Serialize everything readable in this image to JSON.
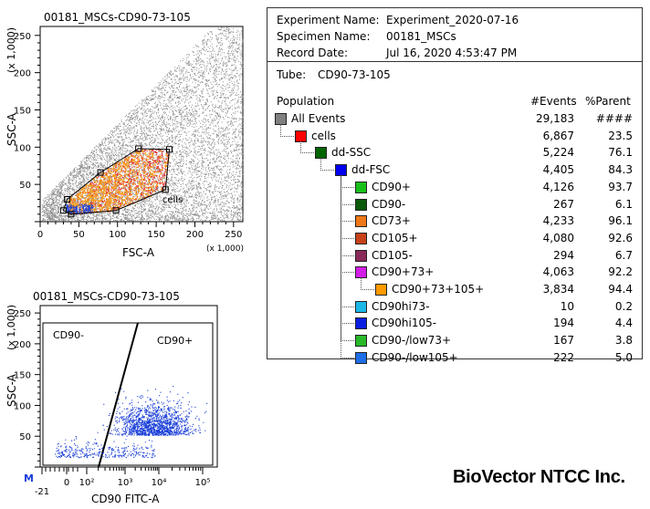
{
  "chart_data": [
    {
      "type": "scatter",
      "title": "00181_MSCs-CD90-73-105",
      "xlabel": "FSC-A",
      "ylabel": "SSC-A",
      "x_scale": "(x 1,000)",
      "y_scale": "(x 1,000)",
      "xlim": [
        0,
        262
      ],
      "ylim": [
        0,
        262
      ],
      "x_ticks": [
        "0",
        "50",
        "100",
        "150",
        "200",
        "250"
      ],
      "y_ticks": [
        "50",
        "100",
        "150",
        "200",
        "250"
      ],
      "gate_label": "cells",
      "gate_vertices": [
        [
          30,
          15
        ],
        [
          40,
          10
        ],
        [
          98,
          15
        ],
        [
          162,
          43
        ],
        [
          167,
          97
        ],
        [
          127,
          98
        ],
        [
          78,
          66
        ],
        [
          35,
          30
        ]
      ],
      "colors": {
        "all_events": "#8c8c8c",
        "cells": "#ee1c1c",
        "cd73": "#f07d12",
        "cd90_73_105": "#f6a21c",
        "cd90_low": "#1a3fd8"
      }
    },
    {
      "type": "scatter",
      "title": "00181_MSCs-CD90-73-105",
      "xlabel": "CD90 FITC-A",
      "ylabel": "SSC-A",
      "y_scale": "(x 1,000)",
      "x_scale_type": "log",
      "x_ticks": [
        "-21",
        "0",
        "10²",
        "10³",
        "10⁴",
        "10⁵"
      ],
      "y_ticks": [
        "50",
        "100",
        "150",
        "200",
        "250"
      ],
      "region_labels": [
        "CD90-",
        "CD90+"
      ],
      "marker_label": "M",
      "colors": {
        "events": "#1a3fd8"
      }
    }
  ],
  "experiment": {
    "fields": [
      {
        "label": "Experiment Name:",
        "value": "Experiment_2020-07-16"
      },
      {
        "label": "Specimen Name:",
        "value": "00181_MSCs"
      },
      {
        "label": "Record Date:",
        "value": "Jul 16, 2020 4:53:47 PM"
      }
    ],
    "tube_label": "Tube:",
    "tube_value": "CD90-73-105"
  },
  "hierarchy": {
    "headers": {
      "population": "Population",
      "events": "#Events",
      "parent": "%Parent"
    },
    "rows": [
      {
        "name": "All Events",
        "events": "29,183",
        "parent": "####",
        "color": "#808080",
        "level": 0
      },
      {
        "name": "cells",
        "events": "6,867",
        "parent": "23.5",
        "color": "#ff0000",
        "level": 1
      },
      {
        "name": "dd-SSC",
        "events": "5,224",
        "parent": "76.1",
        "color": "#006400",
        "level": 2
      },
      {
        "name": "dd-FSC",
        "events": "4,405",
        "parent": "84.3",
        "color": "#0000ee",
        "level": 3
      },
      {
        "name": "CD90+",
        "events": "4,126",
        "parent": "93.7",
        "color": "#19c019",
        "level": 4
      },
      {
        "name": "CD90-",
        "events": "267",
        "parent": "6.1",
        "color": "#0b5a0b",
        "level": 4
      },
      {
        "name": "CD73+",
        "events": "4,233",
        "parent": "96.1",
        "color": "#f07818",
        "level": 4
      },
      {
        "name": "CD105+",
        "events": "4,080",
        "parent": "92.6",
        "color": "#c8421a",
        "level": 4
      },
      {
        "name": "CD105-",
        "events": "294",
        "parent": "6.7",
        "color": "#8a2a5a",
        "level": 4
      },
      {
        "name": "CD90+73+",
        "events": "4,063",
        "parent": "92.2",
        "color": "#d21ee6",
        "level": 4
      },
      {
        "name": "CD90+73+105+",
        "events": "3,834",
        "parent": "94.4",
        "color": "#ff9a00",
        "level": 5
      },
      {
        "name": "CD90hi73-",
        "events": "10",
        "parent": "0.2",
        "color": "#1ab8e8",
        "level": 4
      },
      {
        "name": "CD90hi105-",
        "events": "194",
        "parent": "4.4",
        "color": "#0a1ee0",
        "level": 4
      },
      {
        "name": "CD90-/low73+",
        "events": "167",
        "parent": "3.8",
        "color": "#28b828",
        "level": 4
      },
      {
        "name": "CD90-/low105+",
        "events": "222",
        "parent": "5.0",
        "color": "#1e6ee8",
        "level": 4
      }
    ]
  },
  "brand": "BioVector NTCC Inc."
}
